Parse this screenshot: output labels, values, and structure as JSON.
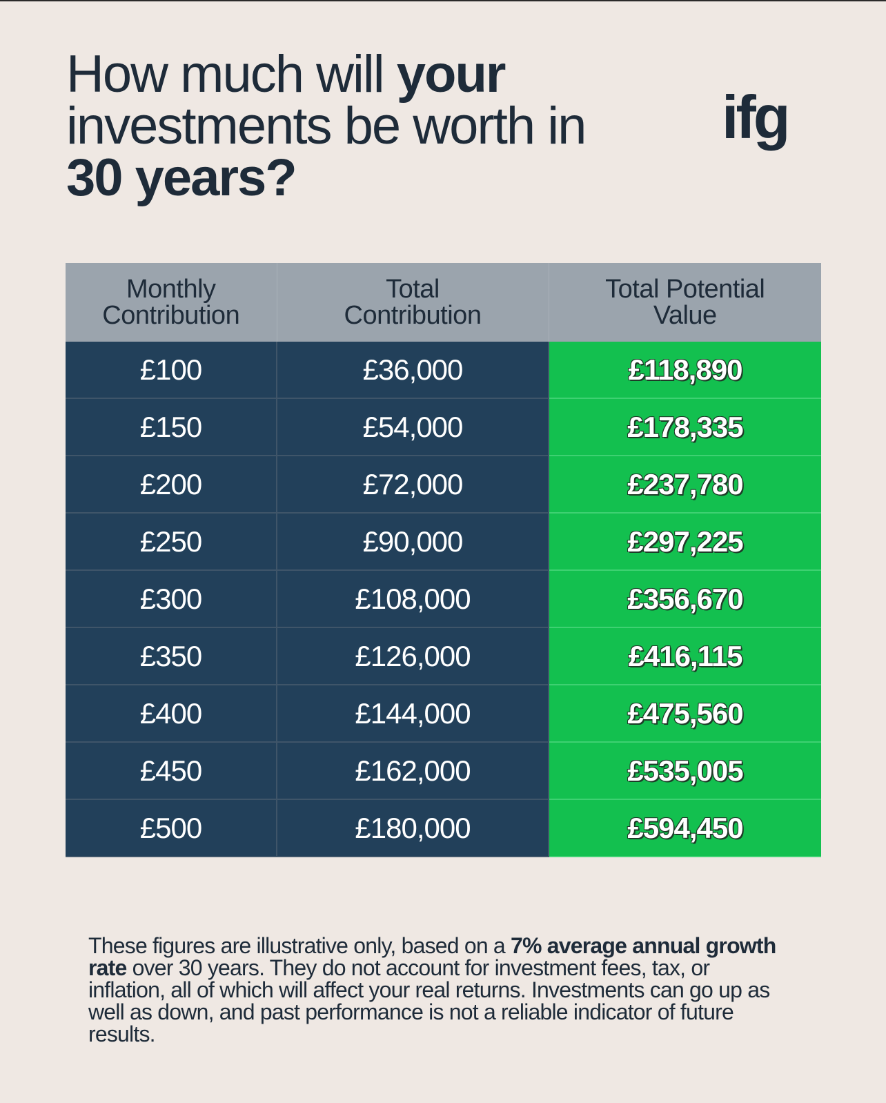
{
  "headline": {
    "line1_plain": "How much will ",
    "line1_bold": "your",
    "line2": "investments be worth in",
    "line3_bold": "30 years?"
  },
  "logo": {
    "text": "ifg"
  },
  "table": {
    "headers": {
      "monthly": [
        "Monthly",
        "Contribution"
      ],
      "total": [
        "Total",
        "Contribution"
      ],
      "potential": [
        "Total Potential",
        "Value"
      ]
    },
    "rows": [
      {
        "monthly": "£100",
        "total": "£36,000",
        "potential": "£118,890"
      },
      {
        "monthly": "£150",
        "total": "£54,000",
        "potential": "£178,335"
      },
      {
        "monthly": "£200",
        "total": "£72,000",
        "potential": "£237,780"
      },
      {
        "monthly": "£250",
        "total": "£90,000",
        "potential": "£297,225"
      },
      {
        "monthly": "£300",
        "total": "£108,000",
        "potential": "£356,670"
      },
      {
        "monthly": "£350",
        "total": "£126,000",
        "potential": "£416,115"
      },
      {
        "monthly": "£400",
        "total": "£144,000",
        "potential": "£475,560"
      },
      {
        "monthly": "£450",
        "total": "£162,000",
        "potential": "£535,005"
      },
      {
        "monthly": "£500",
        "total": "£180,000",
        "potential": "£594,450"
      }
    ]
  },
  "disclaimer": {
    "pre": "These figures are illustrative only, based on a ",
    "bold": "7% average annual growth rate",
    "post": " over 30 years. They do not account for investment fees, tax, or inflation, all of which will affect your real returns. Investments can go up as well as down, and past performance is not a reliable indicator of future results."
  },
  "colors": {
    "background": "#efe8e3",
    "header_bg": "#9ba4ad",
    "dark_cell": "#22405a",
    "green_cell": "#13c04f",
    "text_dark": "#1e2b39"
  }
}
